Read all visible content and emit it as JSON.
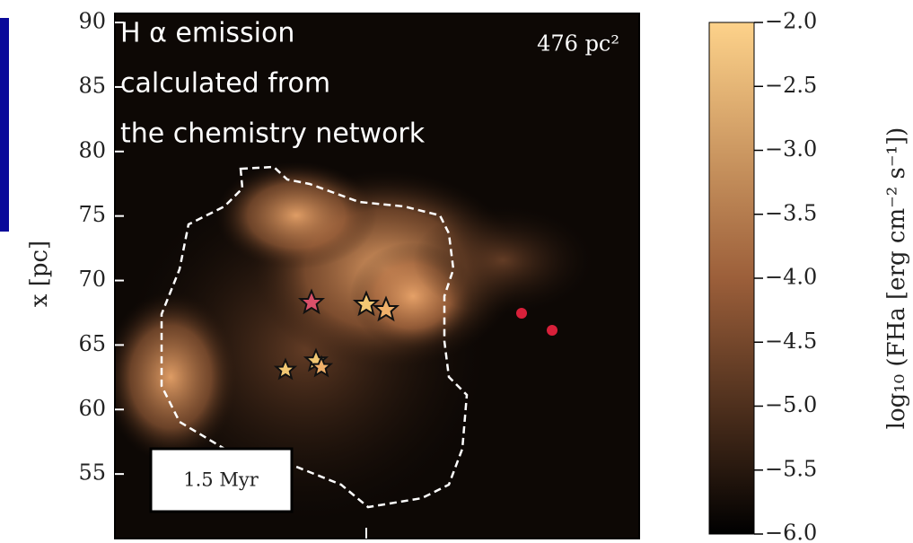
{
  "chart_data": {
    "type": "heatmap",
    "annotation": [
      "H α emission",
      "calculated from",
      "the chemistry network"
    ],
    "area_label": "476 pc²",
    "time_label": "1.5 Myr",
    "y_label": "x [pc]",
    "ylim": [
      50,
      90.7
    ],
    "yticks": [
      55,
      60,
      65,
      70,
      75,
      80,
      85,
      90
    ],
    "colorbar": {
      "label": "log₁₀ (FHa [erg cm⁻² s⁻¹])",
      "clim": [
        -6,
        -2
      ],
      "ticks": [
        {
          "value": -2,
          "label": "−2.0"
        },
        {
          "value": -2.5,
          "label": "−2.5"
        },
        {
          "value": -3,
          "label": "−3.0"
        },
        {
          "value": -3.5,
          "label": "−3.5"
        },
        {
          "value": -4,
          "label": "−4.0"
        },
        {
          "value": -4.5,
          "label": "−4.5"
        },
        {
          "value": -5,
          "label": "−5.0"
        },
        {
          "value": -5.5,
          "label": "−5.5"
        },
        {
          "value": -6,
          "label": "−6.0"
        }
      ],
      "colors": [
        "#000000",
        "#fdd28a"
      ]
    }
  }
}
